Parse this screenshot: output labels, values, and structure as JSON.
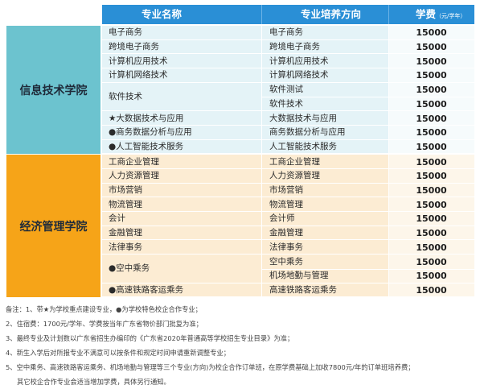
{
  "header": {
    "major_name": "专业名称",
    "direction": "专业培养方向",
    "fee_label": "学费",
    "fee_unit": "（元/学年）"
  },
  "colleges": [
    {
      "name": "信息技术学院",
      "color_left": "#6cc3cf",
      "color_row": "#e4f3f7",
      "color_fee": "#f6fbfc",
      "rows": [
        {
          "major": "电子商务",
          "direction": [
            "电子商务"
          ],
          "fee": "15000"
        },
        {
          "major": "跨境电子商务",
          "direction": [
            "跨境电子商务"
          ],
          "fee": "15000"
        },
        {
          "major": "计算机应用技术",
          "direction": [
            "计算机应用技术"
          ],
          "fee": "15000"
        },
        {
          "major": "计算机网络技术",
          "direction": [
            "计算机网络技术"
          ],
          "fee": "15000"
        },
        {
          "major": "软件技术",
          "direction": [
            "软件测试",
            "软件技术"
          ],
          "fee": [
            "15000",
            "15000"
          ]
        },
        {
          "major": "★大数据技术与应用",
          "direction": [
            "大数据技术与应用"
          ],
          "fee": "15000"
        },
        {
          "major": "●商务数据分析与应用",
          "direction": [
            "商务数据分析与应用"
          ],
          "fee": "15000"
        },
        {
          "major": "●人工智能技术服务",
          "direction": [
            "人工智能技术服务"
          ],
          "fee": "15000"
        }
      ]
    },
    {
      "name": "经济管理学院",
      "color_left": "#f6a418",
      "color_row": "#fcecd3",
      "color_fee": "#fdf6ea",
      "rows": [
        {
          "major": "工商企业管理",
          "direction": [
            "工商企业管理"
          ],
          "fee": "15000"
        },
        {
          "major": "人力资源管理",
          "direction": [
            "人力资源管理"
          ],
          "fee": "15000"
        },
        {
          "major": "市场营销",
          "direction": [
            "市场营销"
          ],
          "fee": "15000"
        },
        {
          "major": "物流管理",
          "direction": [
            "物流管理"
          ],
          "fee": "15000"
        },
        {
          "major": "会计",
          "direction": [
            "会计师"
          ],
          "fee": "15000"
        },
        {
          "major": "金融管理",
          "direction": [
            "金融管理"
          ],
          "fee": "15000"
        },
        {
          "major": "法律事务",
          "direction": [
            "法律事务"
          ],
          "fee": "15000"
        },
        {
          "major": "●空中乘务",
          "direction": [
            "空中乘务",
            "机场地勤与管理"
          ],
          "fee": [
            "15000",
            "15000"
          ]
        },
        {
          "major": "●高速铁路客运乘务",
          "direction": [
            "高速铁路客运乘务"
          ],
          "fee": "15000"
        }
      ]
    }
  ],
  "notes": [
    "备注：1、带★为学校重点建设专业，●为学校特色校企合作专业；",
    "2、住宿费：1700元/学年、学费按当年广东省物价部门批复为准；",
    "3、最终专业及计划数以广东省招生办编印的《广东省2020年普通高等学校招生专业目录》为准；",
    "4、新生入学后对所报专业不满意可以按条件和规定时间申请重新调整专业；",
    "5、空中乘务、高速铁路客运乘务、机场地勤与管理等三个专业(方向)为校企合作订单班，在原学费基础上加收7800元/年的订单班培养费；",
    "其它校企合作专业会适当增加学费，具体另行通知。"
  ]
}
